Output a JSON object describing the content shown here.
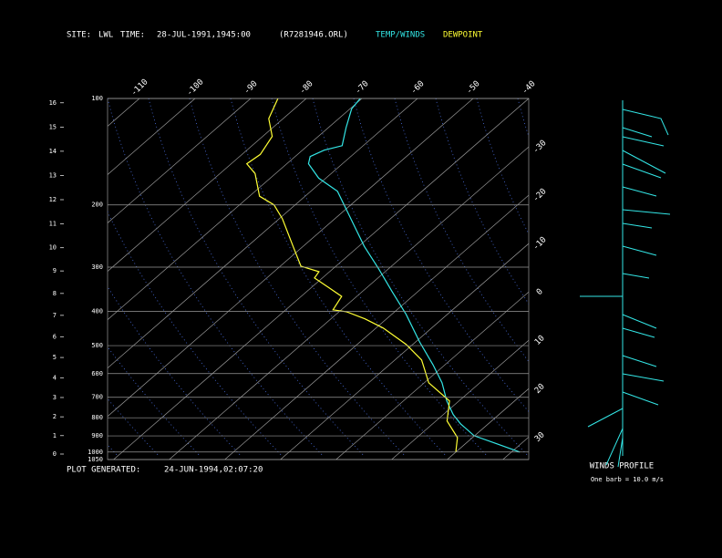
{
  "header": {
    "site_label": "SITE:",
    "site": "LWL",
    "time_label": "TIME:",
    "time": "28-JUL-1991,1945:00",
    "file": "(R7281946.ORL)"
  },
  "footer": {
    "generated_label": "PLOT GENERATED:",
    "generated": "24-JUN-1994,02:07:20"
  },
  "wind_panel": {
    "title": "WINDS PROFILE",
    "note": "One barb = 10.0 m/s"
  },
  "chart_data": {
    "type": "skewt",
    "ylim": [
      100,
      1050
    ],
    "log_y": true,
    "yticks": [
      100,
      200,
      300,
      400,
      500,
      600,
      700,
      800,
      900,
      1000,
      1050
    ],
    "xticks": [
      -110,
      -100,
      -90,
      -80,
      -70,
      -60,
      -50,
      -40,
      -30,
      -20,
      -10,
      0,
      10,
      20,
      30
    ],
    "height_ticks": [
      0,
      1,
      2,
      3,
      4,
      5,
      6,
      7,
      8,
      9,
      10,
      11,
      12,
      13,
      14,
      15,
      16
    ],
    "series": [
      {
        "name": "TEMP/WINDS",
        "color": "#33e6e6",
        "pressure": [
          1000,
          948,
          899,
          832,
          784,
          717,
          637,
          566,
          488,
          408,
          352,
          303,
          262,
          219,
          183,
          168,
          153,
          146,
          140,
          136,
          121,
          107,
          100
        ],
        "values": [
          31.5,
          25.7,
          19.9,
          15.0,
          11.8,
          7.8,
          3.2,
          -2.2,
          -9.3,
          -17.4,
          -24.6,
          -31.8,
          -39.0,
          -47.1,
          -55.2,
          -61.3,
          -66.1,
          -67.3,
          -66.1,
          -63.8,
          -66.8,
          -69.7,
          -70.3
        ]
      },
      {
        "name": "DEWPOINT",
        "color": "#ffff33",
        "pressure": [
          1000,
          910,
          817,
          717,
          637,
          549,
          496,
          446,
          420,
          401,
          396,
          363,
          342,
          322,
          309,
          298,
          262,
          219,
          200,
          189,
          163,
          153,
          144,
          128,
          114,
          100
        ],
        "values": [
          20.0,
          17.3,
          12.0,
          8.3,
          0.8,
          -5.2,
          -11.2,
          -18.7,
          -23.9,
          -28.7,
          -31.5,
          -32.7,
          -37.0,
          -41.4,
          -41.9,
          -46.3,
          -51.8,
          -59.4,
          -63.8,
          -68.2,
          -73.7,
          -77.2,
          -76.7,
          -78.3,
          -82.6,
          -85.1
        ]
      }
    ]
  }
}
